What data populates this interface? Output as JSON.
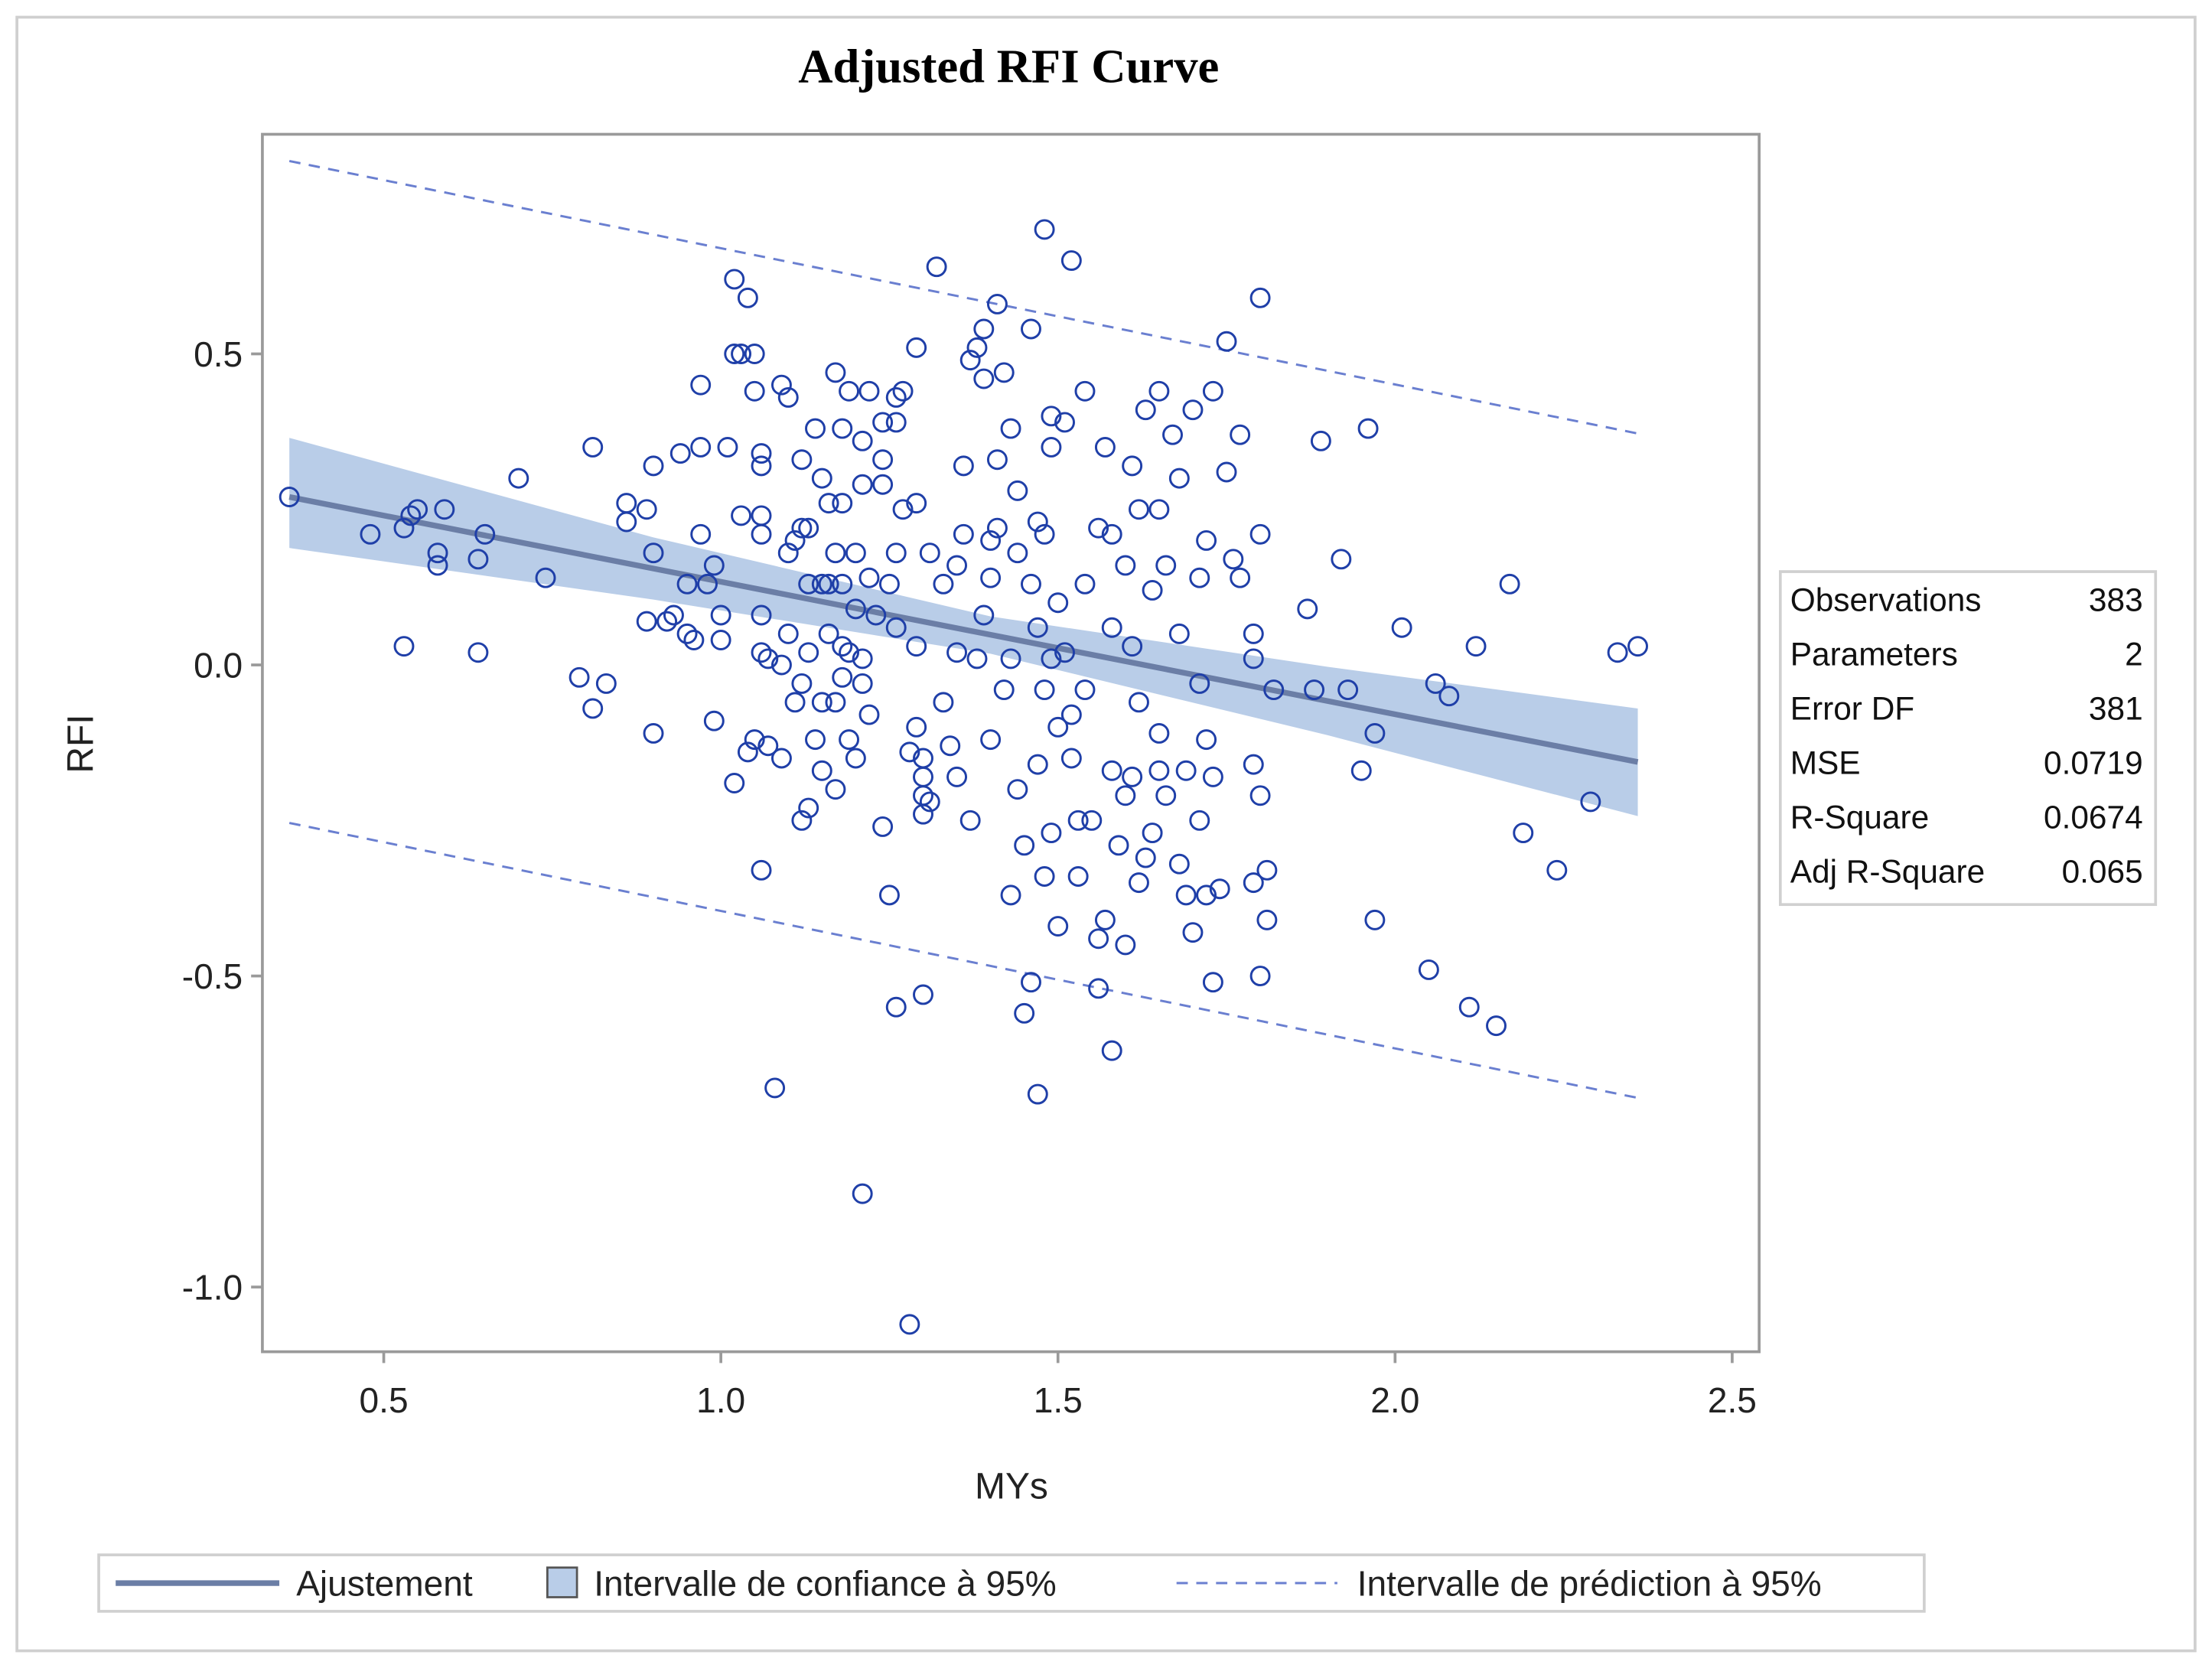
{
  "colors": {
    "marker": "#1f3fa8",
    "fit": "#6b7ea6",
    "band": "#b9cde8",
    "pred": "#6a7fd0",
    "frame": "#9a9a9a"
  },
  "chart_data": {
    "type": "scatter",
    "title": "Adjusted RFI Curve",
    "xlabel": "MYs",
    "ylabel": "RFI",
    "xlim": [
      0.32,
      2.54
    ],
    "ylim": [
      -1.104,
      0.853
    ],
    "xticks": [
      {
        "value": 0.5,
        "label": "0.5"
      },
      {
        "value": 1.0,
        "label": "1.0"
      },
      {
        "value": 1.5,
        "label": "1.5"
      },
      {
        "value": 2.0,
        "label": "2.0"
      },
      {
        "value": 2.5,
        "label": "2.5"
      }
    ],
    "yticks": [
      {
        "value": 0.5,
        "label": "0.5"
      },
      {
        "value": 0.0,
        "label": "0.0"
      },
      {
        "value": -0.5,
        "label": "-0.5"
      },
      {
        "value": -1.0,
        "label": "-1.0"
      }
    ],
    "grid": false,
    "fit": {
      "x": [
        0.36,
        2.36
      ],
      "y": [
        0.27,
        -0.156
      ]
    },
    "confidence_band": {
      "x": [
        0.36,
        0.9,
        1.4,
        1.9,
        2.36
      ],
      "upper": [
        0.365,
        0.205,
        0.078,
        -0.003,
        -0.07
      ],
      "lower": [
        0.188,
        0.105,
        0.018,
        -0.113,
        -0.243
      ]
    },
    "prediction_band": {
      "x": [
        0.36,
        2.36
      ],
      "upper": [
        0.81,
        0.372
      ],
      "lower": [
        -0.254,
        -0.696
      ]
    },
    "stats": [
      {
        "label": "Observations",
        "value": "383"
      },
      {
        "label": "Parameters",
        "value": "2"
      },
      {
        "label": "Error DF",
        "value": "381"
      },
      {
        "label": "MSE",
        "value": "0.0719"
      },
      {
        "label": "R-Square",
        "value": "0.0674"
      },
      {
        "label": "Adj R-Square",
        "value": "0.065"
      }
    ],
    "legend": {
      "placement": "bottom",
      "items": [
        {
          "type": "fit",
          "label": "Ajustement"
        },
        {
          "type": "band",
          "label": "Intervalle de confiance à 95%"
        },
        {
          "type": "pred",
          "label": "Intervalle de prédiction à 95%"
        }
      ]
    },
    "points": [
      [
        0.36,
        0.27
      ],
      [
        0.48,
        0.21
      ],
      [
        0.53,
        0.03
      ],
      [
        0.53,
        0.22
      ],
      [
        0.54,
        0.24
      ],
      [
        0.55,
        0.25
      ],
      [
        0.58,
        0.18
      ],
      [
        0.58,
        0.16
      ],
      [
        0.59,
        0.25
      ],
      [
        0.64,
        0.17
      ],
      [
        0.64,
        0.02
      ],
      [
        0.65,
        0.21
      ],
      [
        0.7,
        0.3
      ],
      [
        0.74,
        0.14
      ],
      [
        0.79,
        -0.02
      ],
      [
        0.81,
        0.35
      ],
      [
        0.81,
        -0.07
      ],
      [
        0.83,
        -0.03
      ],
      [
        0.86,
        0.26
      ],
      [
        0.86,
        0.23
      ],
      [
        0.89,
        0.25
      ],
      [
        0.89,
        0.07
      ],
      [
        0.9,
        0.32
      ],
      [
        0.9,
        0.18
      ],
      [
        0.9,
        -0.11
      ],
      [
        0.92,
        0.07
      ],
      [
        0.93,
        0.08
      ],
      [
        0.94,
        0.34
      ],
      [
        0.95,
        0.13
      ],
      [
        0.95,
        0.05
      ],
      [
        0.96,
        0.04
      ],
      [
        0.97,
        0.45
      ],
      [
        0.97,
        0.35
      ],
      [
        0.97,
        0.21
      ],
      [
        0.98,
        0.13
      ],
      [
        0.99,
        0.16
      ],
      [
        0.99,
        -0.09
      ],
      [
        1.0,
        0.08
      ],
      [
        1.0,
        0.04
      ],
      [
        1.01,
        0.35
      ],
      [
        1.02,
        0.62
      ],
      [
        1.02,
        0.5
      ],
      [
        1.02,
        -0.19
      ],
      [
        1.03,
        0.5
      ],
      [
        1.03,
        0.24
      ],
      [
        1.04,
        0.59
      ],
      [
        1.04,
        -0.14
      ],
      [
        1.05,
        0.5
      ],
      [
        1.05,
        0.44
      ],
      [
        1.05,
        -0.12
      ],
      [
        1.06,
        0.34
      ],
      [
        1.06,
        0.32
      ],
      [
        1.06,
        0.24
      ],
      [
        1.06,
        0.21
      ],
      [
        1.06,
        0.08
      ],
      [
        1.06,
        0.02
      ],
      [
        1.06,
        -0.33
      ],
      [
        1.07,
        0.01
      ],
      [
        1.07,
        -0.13
      ],
      [
        1.08,
        -0.68
      ],
      [
        1.09,
        0.45
      ],
      [
        1.09,
        0.0
      ],
      [
        1.09,
        -0.15
      ],
      [
        1.1,
        0.43
      ],
      [
        1.1,
        0.18
      ],
      [
        1.1,
        0.05
      ],
      [
        1.11,
        0.2
      ],
      [
        1.11,
        -0.06
      ],
      [
        1.12,
        0.33
      ],
      [
        1.12,
        0.22
      ],
      [
        1.12,
        -0.03
      ],
      [
        1.12,
        -0.25
      ],
      [
        1.13,
        0.22
      ],
      [
        1.13,
        0.13
      ],
      [
        1.13,
        0.02
      ],
      [
        1.13,
        -0.23
      ],
      [
        1.14,
        0.38
      ],
      [
        1.14,
        -0.12
      ],
      [
        1.15,
        0.3
      ],
      [
        1.15,
        0.13
      ],
      [
        1.15,
        -0.06
      ],
      [
        1.15,
        -0.17
      ],
      [
        1.16,
        0.26
      ],
      [
        1.16,
        0.13
      ],
      [
        1.16,
        0.05
      ],
      [
        1.17,
        0.47
      ],
      [
        1.17,
        0.18
      ],
      [
        1.17,
        -0.06
      ],
      [
        1.17,
        -0.2
      ],
      [
        1.18,
        0.38
      ],
      [
        1.18,
        0.26
      ],
      [
        1.18,
        0.13
      ],
      [
        1.18,
        0.03
      ],
      [
        1.18,
        -0.02
      ],
      [
        1.19,
        0.44
      ],
      [
        1.19,
        0.02
      ],
      [
        1.19,
        -0.12
      ],
      [
        1.2,
        0.18
      ],
      [
        1.2,
        0.09
      ],
      [
        1.2,
        -0.15
      ],
      [
        1.21,
        0.36
      ],
      [
        1.21,
        0.29
      ],
      [
        1.21,
        0.01
      ],
      [
        1.21,
        -0.03
      ],
      [
        1.21,
        -0.85
      ],
      [
        1.22,
        0.44
      ],
      [
        1.22,
        0.14
      ],
      [
        1.22,
        -0.08
      ],
      [
        1.23,
        0.08
      ],
      [
        1.24,
        0.39
      ],
      [
        1.24,
        0.33
      ],
      [
        1.24,
        0.29
      ],
      [
        1.24,
        -0.26
      ],
      [
        1.25,
        0.13
      ],
      [
        1.25,
        -0.37
      ],
      [
        1.26,
        0.43
      ],
      [
        1.26,
        0.39
      ],
      [
        1.26,
        0.18
      ],
      [
        1.26,
        0.06
      ],
      [
        1.26,
        -0.55
      ],
      [
        1.27,
        0.44
      ],
      [
        1.27,
        0.25
      ],
      [
        1.28,
        -0.14
      ],
      [
        1.28,
        -1.06
      ],
      [
        1.29,
        0.51
      ],
      [
        1.29,
        0.26
      ],
      [
        1.29,
        0.03
      ],
      [
        1.29,
        -0.1
      ],
      [
        1.3,
        -0.15
      ],
      [
        1.3,
        -0.18
      ],
      [
        1.3,
        -0.21
      ],
      [
        1.3,
        -0.24
      ],
      [
        1.3,
        -0.53
      ],
      [
        1.31,
        0.18
      ],
      [
        1.31,
        -0.22
      ],
      [
        1.32,
        0.64
      ],
      [
        1.33,
        0.13
      ],
      [
        1.33,
        -0.06
      ],
      [
        1.34,
        -0.13
      ],
      [
        1.35,
        0.16
      ],
      [
        1.35,
        0.02
      ],
      [
        1.35,
        -0.18
      ],
      [
        1.36,
        0.32
      ],
      [
        1.36,
        0.21
      ],
      [
        1.37,
        0.49
      ],
      [
        1.37,
        -0.25
      ],
      [
        1.38,
        0.51
      ],
      [
        1.38,
        0.01
      ],
      [
        1.39,
        0.54
      ],
      [
        1.39,
        0.46
      ],
      [
        1.39,
        0.08
      ],
      [
        1.4,
        0.2
      ],
      [
        1.4,
        0.14
      ],
      [
        1.4,
        -0.12
      ],
      [
        1.41,
        0.58
      ],
      [
        1.41,
        0.33
      ],
      [
        1.41,
        0.22
      ],
      [
        1.42,
        0.47
      ],
      [
        1.42,
        -0.04
      ],
      [
        1.43,
        0.38
      ],
      [
        1.43,
        0.01
      ],
      [
        1.43,
        -0.37
      ],
      [
        1.44,
        0.28
      ],
      [
        1.44,
        0.18
      ],
      [
        1.44,
        -0.2
      ],
      [
        1.45,
        -0.56
      ],
      [
        1.45,
        -0.29
      ],
      [
        1.46,
        0.54
      ],
      [
        1.46,
        0.13
      ],
      [
        1.46,
        -0.51
      ],
      [
        1.47,
        0.23
      ],
      [
        1.47,
        0.06
      ],
      [
        1.47,
        -0.16
      ],
      [
        1.47,
        -0.69
      ],
      [
        1.48,
        0.7
      ],
      [
        1.48,
        0.21
      ],
      [
        1.48,
        -0.04
      ],
      [
        1.48,
        -0.34
      ],
      [
        1.49,
        0.4
      ],
      [
        1.49,
        0.35
      ],
      [
        1.49,
        0.01
      ],
      [
        1.49,
        -0.27
      ],
      [
        1.5,
        0.1
      ],
      [
        1.5,
        -0.1
      ],
      [
        1.5,
        -0.42
      ],
      [
        1.51,
        0.39
      ],
      [
        1.51,
        0.02
      ],
      [
        1.52,
        0.65
      ],
      [
        1.52,
        -0.08
      ],
      [
        1.52,
        -0.15
      ],
      [
        1.53,
        -0.25
      ],
      [
        1.53,
        -0.34
      ],
      [
        1.54,
        0.44
      ],
      [
        1.54,
        0.13
      ],
      [
        1.54,
        -0.04
      ],
      [
        1.55,
        -0.25
      ],
      [
        1.56,
        0.22
      ],
      [
        1.56,
        -0.44
      ],
      [
        1.56,
        -0.52
      ],
      [
        1.57,
        0.35
      ],
      [
        1.57,
        -0.41
      ],
      [
        1.58,
        0.21
      ],
      [
        1.58,
        0.06
      ],
      [
        1.58,
        -0.17
      ],
      [
        1.58,
        -0.62
      ],
      [
        1.59,
        -0.29
      ],
      [
        1.6,
        0.16
      ],
      [
        1.6,
        -0.45
      ],
      [
        1.6,
        -0.21
      ],
      [
        1.61,
        0.32
      ],
      [
        1.61,
        0.03
      ],
      [
        1.61,
        -0.18
      ],
      [
        1.62,
        0.25
      ],
      [
        1.62,
        -0.06
      ],
      [
        1.62,
        -0.35
      ],
      [
        1.63,
        0.41
      ],
      [
        1.63,
        -0.31
      ],
      [
        1.64,
        0.12
      ],
      [
        1.64,
        -0.27
      ],
      [
        1.65,
        0.44
      ],
      [
        1.65,
        0.25
      ],
      [
        1.65,
        -0.11
      ],
      [
        1.65,
        -0.17
      ],
      [
        1.66,
        0.16
      ],
      [
        1.66,
        -0.21
      ],
      [
        1.67,
        0.37
      ],
      [
        1.68,
        0.3
      ],
      [
        1.68,
        0.05
      ],
      [
        1.68,
        -0.32
      ],
      [
        1.69,
        -0.17
      ],
      [
        1.69,
        -0.37
      ],
      [
        1.7,
        0.41
      ],
      [
        1.7,
        -0.43
      ],
      [
        1.71,
        -0.03
      ],
      [
        1.71,
        -0.25
      ],
      [
        1.71,
        0.14
      ],
      [
        1.72,
        0.2
      ],
      [
        1.72,
        -0.12
      ],
      [
        1.72,
        -0.37
      ],
      [
        1.73,
        0.44
      ],
      [
        1.73,
        -0.18
      ],
      [
        1.73,
        -0.51
      ],
      [
        1.74,
        -0.36
      ],
      [
        1.75,
        0.52
      ],
      [
        1.75,
        0.31
      ],
      [
        1.76,
        0.17
      ],
      [
        1.77,
        0.14
      ],
      [
        1.77,
        0.37
      ],
      [
        1.79,
        0.05
      ],
      [
        1.79,
        0.01
      ],
      [
        1.79,
        -0.16
      ],
      [
        1.79,
        -0.35
      ],
      [
        1.8,
        0.59
      ],
      [
        1.8,
        0.21
      ],
      [
        1.8,
        -0.21
      ],
      [
        1.8,
        -0.5
      ],
      [
        1.81,
        -0.33
      ],
      [
        1.81,
        -0.41
      ],
      [
        1.82,
        -0.04
      ],
      [
        1.87,
        0.09
      ],
      [
        1.88,
        -0.04
      ],
      [
        1.89,
        0.36
      ],
      [
        1.92,
        0.17
      ],
      [
        1.93,
        -0.04
      ],
      [
        1.95,
        -0.17
      ],
      [
        1.96,
        0.38
      ],
      [
        1.97,
        -0.11
      ],
      [
        1.97,
        -0.41
      ],
      [
        2.01,
        0.06
      ],
      [
        2.05,
        -0.49
      ],
      [
        2.06,
        -0.03
      ],
      [
        2.08,
        -0.05
      ],
      [
        2.11,
        -0.55
      ],
      [
        2.12,
        0.03
      ],
      [
        2.15,
        -0.58
      ],
      [
        2.17,
        0.13
      ],
      [
        2.19,
        -0.27
      ],
      [
        2.24,
        -0.33
      ],
      [
        2.29,
        -0.22
      ],
      [
        2.33,
        0.02
      ],
      [
        2.36,
        0.03
      ]
    ]
  }
}
